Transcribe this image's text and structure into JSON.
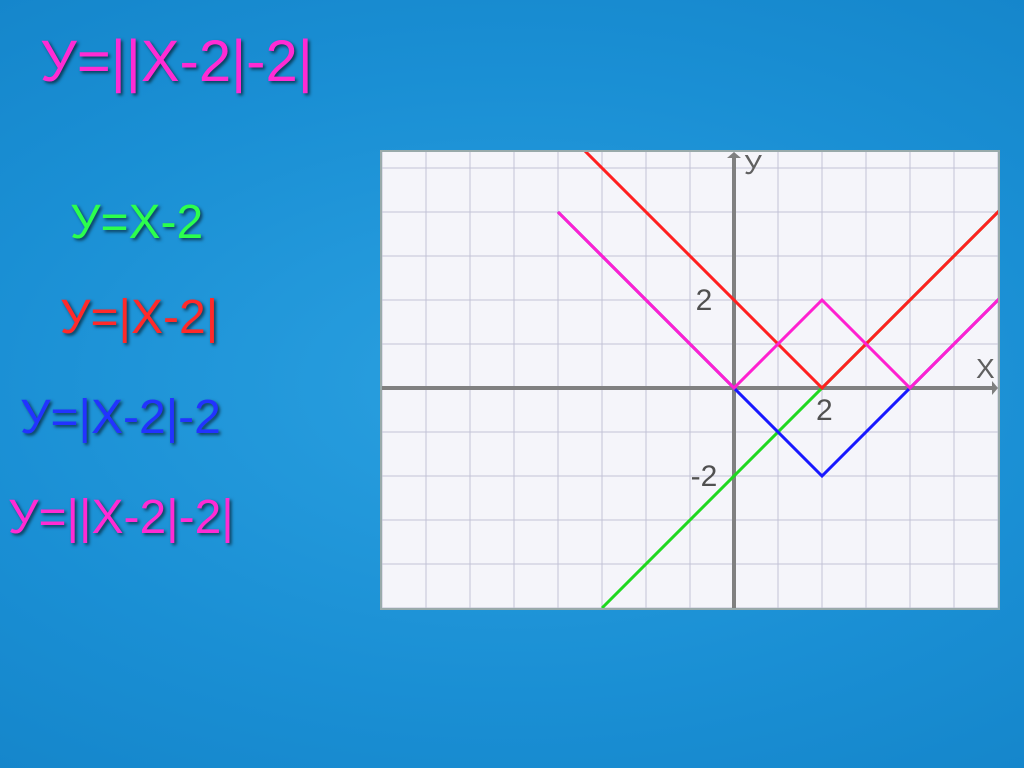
{
  "background_color": "#1a8fd4",
  "equations": {
    "title": {
      "text": "У=||Х-2|-2|",
      "color": "#ff2bd4",
      "fontsize": 58
    },
    "green": {
      "text": "У=Х-2",
      "color": "#2cff4d",
      "fontsize": 48
    },
    "red": {
      "text": "У=|Х-2|",
      "color": "#ff2a2a",
      "fontsize": 48
    },
    "blue": {
      "text": "У=|Х-2|-2",
      "color": "#2233ff",
      "fontsize": 48
    },
    "magenta": {
      "text": "У=||Х-2|-2|",
      "color": "#ff2bd4",
      "fontsize": 48
    }
  },
  "chart": {
    "type": "line",
    "background_color": "#f5f5fa",
    "grid_color": "#c2c2d6",
    "axis_color": "#808080",
    "axis_width": 4,
    "line_width": 3,
    "xrange": [
      -6,
      8
    ],
    "yrange": [
      -5,
      6
    ],
    "grid_step": 1,
    "origin_offset_x": -2,
    "tick_labels": {
      "x": [
        {
          "value": 2,
          "label": "2"
        }
      ],
      "y": [
        {
          "value": 2,
          "label": "2"
        },
        {
          "value": -2,
          "label": "-2"
        }
      ]
    },
    "axis_labels": {
      "x": "Х",
      "y": "У"
    },
    "series": [
      {
        "name": "green",
        "color": "#1fd81f",
        "points": [
          [
            -3,
            -5
          ],
          [
            8,
            6
          ]
        ]
      },
      {
        "name": "red",
        "color": "#ff2020",
        "points": [
          [
            -4,
            6
          ],
          [
            2,
            0
          ],
          [
            8,
            6
          ]
        ]
      },
      {
        "name": "blue",
        "color": "#1818ff",
        "points": [
          [
            -4,
            4
          ],
          [
            2,
            -2
          ],
          [
            8,
            4
          ]
        ]
      },
      {
        "name": "magenta",
        "color": "#ff20d0",
        "points": [
          [
            -4,
            4
          ],
          [
            0,
            0
          ],
          [
            2,
            2
          ],
          [
            4,
            0
          ],
          [
            8,
            4
          ]
        ]
      }
    ]
  }
}
